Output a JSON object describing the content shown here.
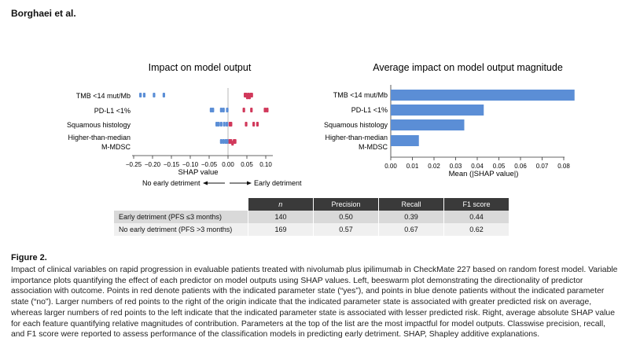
{
  "header": {
    "author": "Borghaei et al."
  },
  "beeswarm": {
    "title": "Impact on model output",
    "xlabel": "SHAP value",
    "xticks": [
      "−0.25",
      "−0.20",
      "−0.15",
      "−0.10",
      "−0.05",
      "0.00",
      "0.05",
      "0.10"
    ],
    "arrow_left": "No early detriment",
    "arrow_right": "Early detriment",
    "features": [
      "TMB <14 mut/Mb",
      "PD-L1 <1%",
      "Squamous histology",
      "Higher-than-median",
      "M-MDSC"
    ],
    "colors": {
      "yes": "#d1395b",
      "no": "#5b8ed6"
    }
  },
  "bar": {
    "title": "Average impact on model output magnitude",
    "xlabel": "Mean (|SHAP value|)",
    "xticks": [
      "0.00",
      "0.01",
      "0.02",
      "0.03",
      "0.04",
      "0.05",
      "0.06",
      "0.07",
      "0.08"
    ],
    "labels": [
      "TMB <14 mut/Mb",
      "PD-L1 <1%",
      "Squamous histology",
      "Higher-than-median",
      "M-MDSC"
    ],
    "color": "#5b8ed6"
  },
  "chart_data": [
    {
      "type": "scatter",
      "title": "Impact on model output",
      "xlabel": "SHAP value",
      "xlim": [
        -0.27,
        0.12
      ],
      "categories": [
        "TMB <14 mut/Mb",
        "PD-L1 <1%",
        "Squamous histology",
        "Higher-than-median M-MDSC"
      ],
      "series": [
        {
          "name": "yes",
          "points": [
            {
              "feature": 0,
              "x": 0.045
            },
            {
              "feature": 0,
              "x": 0.048
            },
            {
              "feature": 0,
              "x": 0.051
            },
            {
              "feature": 0,
              "x": 0.054
            },
            {
              "feature": 0,
              "x": 0.057
            },
            {
              "feature": 0,
              "x": 0.06
            },
            {
              "feature": 0,
              "x": 0.063
            },
            {
              "feature": 1,
              "x": 0.042
            },
            {
              "feature": 1,
              "x": 0.062
            },
            {
              "feature": 1,
              "x": 0.098
            },
            {
              "feature": 1,
              "x": 0.104
            },
            {
              "feature": 2,
              "x": 0.005
            },
            {
              "feature": 2,
              "x": 0.008
            },
            {
              "feature": 2,
              "x": 0.048
            },
            {
              "feature": 2,
              "x": 0.068
            },
            {
              "feature": 2,
              "x": 0.078
            },
            {
              "feature": 3,
              "x": 0.004
            },
            {
              "feature": 3,
              "x": 0.008
            },
            {
              "feature": 3,
              "x": 0.012
            },
            {
              "feature": 3,
              "x": 0.016
            },
            {
              "feature": 3,
              "x": 0.019
            }
          ]
        },
        {
          "name": "no",
          "points": [
            {
              "feature": 0,
              "x": -0.232
            },
            {
              "feature": 0,
              "x": -0.222
            },
            {
              "feature": 0,
              "x": -0.196
            },
            {
              "feature": 0,
              "x": -0.17
            },
            {
              "feature": 1,
              "x": -0.045
            },
            {
              "feature": 1,
              "x": -0.04
            },
            {
              "feature": 1,
              "x": -0.018
            },
            {
              "feature": 1,
              "x": -0.012
            },
            {
              "feature": 1,
              "x": -0.002
            },
            {
              "feature": 2,
              "x": -0.03
            },
            {
              "feature": 2,
              "x": -0.025
            },
            {
              "feature": 2,
              "x": -0.018
            },
            {
              "feature": 2,
              "x": -0.01
            },
            {
              "feature": 2,
              "x": -0.003
            },
            {
              "feature": 3,
              "x": -0.018
            },
            {
              "feature": 3,
              "x": -0.012
            },
            {
              "feature": 3,
              "x": -0.006
            },
            {
              "feature": 3,
              "x": -0.002
            }
          ]
        }
      ]
    },
    {
      "type": "bar",
      "title": "Average impact on model output magnitude",
      "xlabel": "Mean (|SHAP value|)",
      "categories": [
        "TMB <14 mut/Mb",
        "PD-L1 <1%",
        "Squamous histology",
        "Higher-than-median M-MDSC"
      ],
      "values": [
        0.085,
        0.043,
        0.034,
        0.013
      ],
      "xlim": [
        0,
        0.086
      ]
    },
    {
      "type": "table",
      "columns": [
        "",
        "n",
        "Precision",
        "Recall",
        "F1 score"
      ],
      "rows": [
        [
          "Early detriment (PFS ≤3 months)",
          "140",
          "0.50",
          "0.39",
          "0.44"
        ],
        [
          "No early detriment (PFS >3 months)",
          "169",
          "0.57",
          "0.67",
          "0.62"
        ]
      ]
    }
  ],
  "figure": {
    "label": "Figure 2.",
    "caption": "Impact of clinical variables on rapid progression in evaluable patients treated with nivolumab plus ipilimumab in CheckMate 227 based on random forest model. Variable importance plots quantifying the effect of each predictor on model outputs using SHAP values. Left, beeswarm plot demonstrating the directionality of predictor association with outcome. Points in red denote patients with the indicated parameter state (“yes”), and points in blue denote patients without the indicated parameter state (“no”). Larger numbers of red points to the right of the origin indicate that the indicated parameter state is associated with greater predicted risk on average, whereas larger numbers of red points to the left indicate that the indicated parameter state is associated with lesser predicted risk. Right, average absolute SHAP value for each feature quantifying relative magnitudes of contribution. Parameters at the top of the list are the most impactful for model outputs. Classwise precision, recall, and F1 score were reported to assess performance of the classification models in predicting early detriment. SHAP, Shapley additive explanations."
  }
}
